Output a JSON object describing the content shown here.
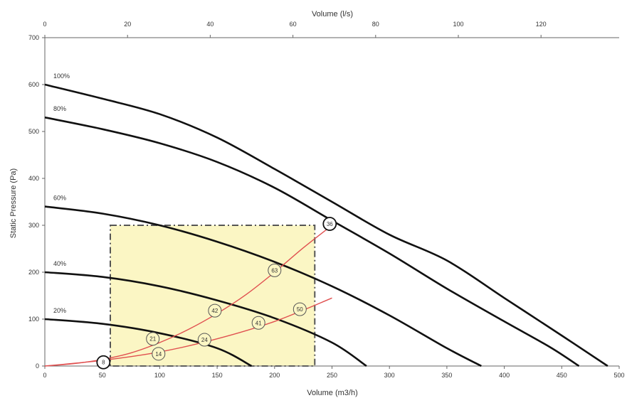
{
  "chart_data": {
    "type": "line",
    "title": "",
    "xlabel": "Volume (m3/h)",
    "x2label": "Volume (l/s)",
    "ylabel": "Static Pressure (Pa)",
    "xlim": [
      0,
      500
    ],
    "x2lim": [
      0,
      138.9
    ],
    "ylim": [
      0,
      700
    ],
    "xticks": [
      0,
      50,
      100,
      150,
      200,
      250,
      300,
      350,
      400,
      450,
      500
    ],
    "x2ticks": [
      0,
      20,
      40,
      60,
      80,
      100,
      120
    ],
    "yticks": [
      0,
      100,
      200,
      300,
      400,
      500,
      600,
      700
    ],
    "grid": false,
    "legend": "none",
    "colors": {
      "fan_curve": "#111111",
      "system_curve": "#e05050",
      "zone_fill": "#fbf6c4",
      "zone_border": "#555555",
      "marker_fill": "#fbf6c4",
      "marker_stroke": "#555555"
    },
    "series": [
      {
        "name": "100%",
        "x": [
          0,
          50,
          100,
          150,
          200,
          250,
          300,
          350,
          400,
          450,
          490
        ],
        "y": [
          600,
          570,
          537,
          487,
          420,
          350,
          280,
          225,
          145,
          65,
          0
        ]
      },
      {
        "name": "80%",
        "x": [
          0,
          50,
          100,
          150,
          200,
          250,
          300,
          350,
          400,
          440,
          465
        ],
        "y": [
          530,
          505,
          475,
          435,
          380,
          310,
          240,
          165,
          95,
          40,
          0
        ]
      },
      {
        "name": "60%",
        "x": [
          0,
          50,
          100,
          150,
          200,
          250,
          300,
          350,
          380
        ],
        "y": [
          340,
          325,
          300,
          265,
          222,
          170,
          108,
          38,
          0
        ]
      },
      {
        "name": "40%",
        "x": [
          0,
          50,
          100,
          150,
          200,
          250,
          280
        ],
        "y": [
          200,
          190,
          170,
          140,
          102,
          50,
          0
        ]
      },
      {
        "name": "20%",
        "x": [
          0,
          50,
          100,
          150,
          180
        ],
        "y": [
          100,
          90,
          70,
          38,
          0
        ]
      }
    ],
    "system_curves": [
      {
        "x": [
          0,
          25,
          50,
          75,
          100,
          125,
          150,
          175,
          200,
          225,
          250
        ],
        "y": [
          0,
          5,
          14,
          28,
          50,
          78,
          112,
          152,
          200,
          252,
          300
        ]
      },
      {
        "x": [
          0,
          50,
          100,
          150,
          200,
          250
        ],
        "y": [
          0,
          12,
          30,
          58,
          95,
          145
        ]
      }
    ],
    "zone": {
      "x": [
        57,
        235
      ],
      "y": [
        0,
        300
      ]
    },
    "annotations": [
      {
        "label": "8",
        "x": 51,
        "y": 8,
        "style": "dark"
      },
      {
        "label": "14",
        "x": 99,
        "y": 26,
        "style": "light"
      },
      {
        "label": "21",
        "x": 94,
        "y": 58,
        "style": "light"
      },
      {
        "label": "24",
        "x": 139,
        "y": 56,
        "style": "light"
      },
      {
        "label": "42",
        "x": 148,
        "y": 118,
        "style": "light"
      },
      {
        "label": "41",
        "x": 186,
        "y": 92,
        "style": "light"
      },
      {
        "label": "63",
        "x": 200,
        "y": 204,
        "style": "light"
      },
      {
        "label": "50",
        "x": 222,
        "y": 121,
        "style": "light"
      },
      {
        "label": "36",
        "x": 248,
        "y": 303,
        "style": "dark"
      }
    ]
  }
}
